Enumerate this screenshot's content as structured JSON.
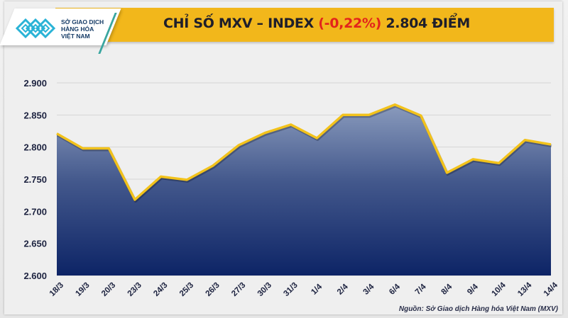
{
  "logo": {
    "lines": [
      "SỞ GIAO DỊCH",
      "HÀNG HÓA",
      "VIỆT NAM"
    ],
    "icon": "mxv-logo-icon"
  },
  "header": {
    "title_prefix": "CHỈ SỐ MXV – INDEX ",
    "title_change": "(-0,22%)",
    "title_suffix": " 2.804 ĐIỂM",
    "banner_color": "#f2b71b",
    "change_color": "#e3241b"
  },
  "source": "Nguồn: Sở Giao dịch Hàng hóa Việt Nam (MXV)",
  "chart_data": {
    "type": "area",
    "title": "CHỈ SỐ MXV – INDEX (-0,22%) 2.804 ĐIỂM",
    "xlabel": "",
    "ylabel": "",
    "categories": [
      "18/3",
      "19/3",
      "20/3",
      "23/3",
      "24/3",
      "25/3",
      "26/3",
      "27/3",
      "30/3",
      "31/3",
      "1/4",
      "2/4",
      "3/4",
      "6/4",
      "7/4",
      "8/4",
      "9/4",
      "10/4",
      "13/4",
      "14/4"
    ],
    "series": [
      {
        "name": "MXV-Index",
        "values": [
          2821,
          2798,
          2798,
          2718,
          2754,
          2749,
          2771,
          2803,
          2822,
          2835,
          2814,
          2850,
          2850,
          2866,
          2849,
          2760,
          2781,
          2775,
          2811,
          2804
        ],
        "line_color": "#f2c21b",
        "fill_top": "#8a9bbd",
        "fill_bottom": "#0d2466"
      }
    ],
    "yticks": [
      "2.900",
      "2.850",
      "2.800",
      "2.750",
      "2.700",
      "2.650",
      "2.600"
    ],
    "ylim": [
      2600,
      2900
    ],
    "grid": true,
    "legend": "none"
  }
}
